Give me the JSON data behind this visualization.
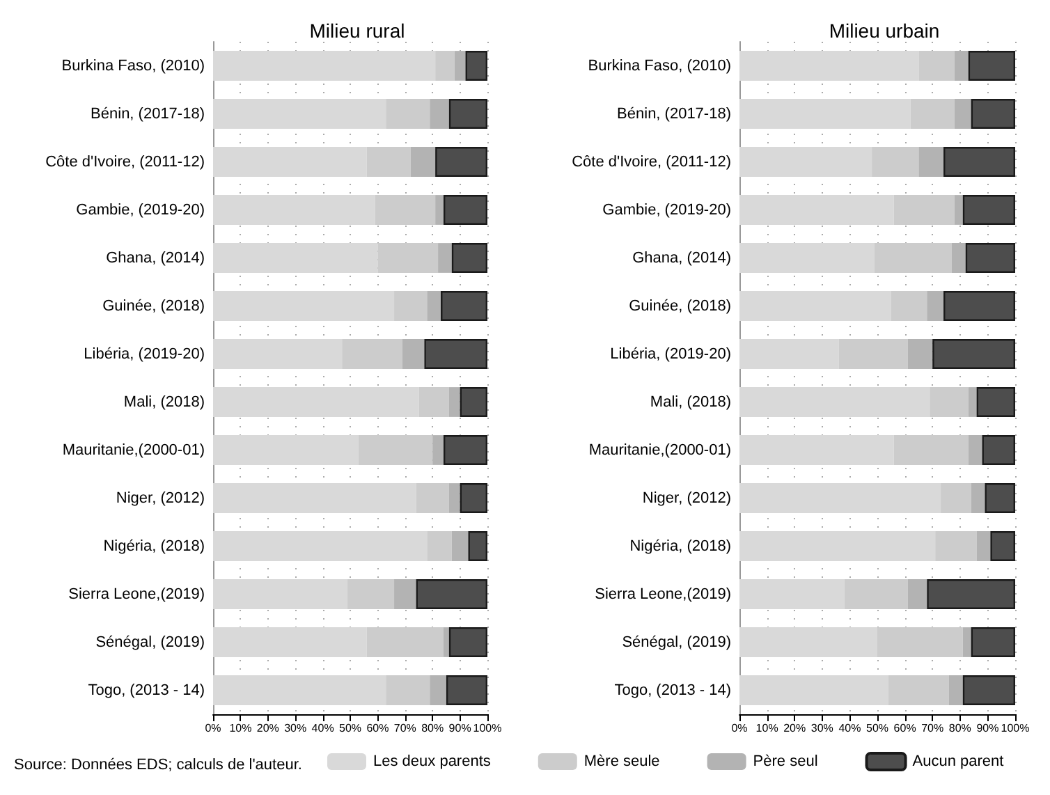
{
  "chart_data": [
    {
      "type": "bar",
      "orientation": "horizontal",
      "stacked": true,
      "title": "Milieu rural",
      "categories": [
        "Burkina Faso, (2010)",
        "Bénin, (2017-18)",
        "Côte d'Ivoire, (2011-12)",
        "Gambie, (2019-20)",
        "Ghana, (2014)",
        "Guinée, (2018)",
        "Libéria, (2019-20)",
        "Mali, (2018)",
        "Mauritanie,(2000-01)",
        "Niger, (2012)",
        "Nigéria, (2018)",
        "Sierra Leone,(2019)",
        "Sénégal, (2019)",
        "Togo, (2013 - 14)"
      ],
      "series": [
        {
          "name": "Les deux parents",
          "color": "#d9d9d9",
          "values": [
            81,
            63,
            56,
            59,
            60,
            66,
            47,
            75,
            53,
            74,
            78,
            49,
            56,
            63
          ]
        },
        {
          "name": "Mère seule",
          "color": "#cccccc",
          "values": [
            7,
            16,
            16,
            22,
            22,
            12,
            22,
            11,
            27,
            12,
            9,
            17,
            28,
            16
          ]
        },
        {
          "name": "Père seul",
          "color": "#b3b3b3",
          "values": [
            4,
            7,
            9,
            3,
            5,
            5,
            8,
            4,
            4,
            4,
            6,
            8,
            2,
            6
          ]
        },
        {
          "name": "Aucun parent",
          "color": "#4d4d4d",
          "values": [
            8,
            14,
            19,
            16,
            13,
            17,
            23,
            10,
            16,
            10,
            7,
            26,
            14,
            15
          ]
        }
      ],
      "xlim": [
        0,
        100
      ],
      "xticks": [
        {
          "value": 0,
          "label": "0%"
        },
        {
          "value": 10,
          "label": "10%"
        },
        {
          "value": 20,
          "label": "20%"
        },
        {
          "value": 30,
          "label": "30%"
        },
        {
          "value": 40,
          "label": "40%"
        },
        {
          "value": 50,
          "label": "50%"
        },
        {
          "value": 60,
          "label": "60%"
        },
        {
          "value": 70,
          "label": "70%"
        },
        {
          "value": 80,
          "label": "80%"
        },
        {
          "value": 90,
          "label": "90%"
        },
        {
          "value": 100,
          "label": "100%"
        }
      ],
      "grid": "x",
      "legend": "bottom",
      "annotations": [
        "Source: Données EDS; calculs de l'auteur."
      ]
    },
    {
      "type": "bar",
      "orientation": "horizontal",
      "stacked": true,
      "title": "Milieu urbain",
      "categories": [
        "Burkina Faso, (2010)",
        "Bénin, (2017-18)",
        "Côte d'Ivoire, (2011-12)",
        "Gambie, (2019-20)",
        "Ghana, (2014)",
        "Guinée, (2018)",
        "Libéria, (2019-20)",
        "Mali, (2018)",
        "Mauritanie,(2000-01)",
        "Niger, (2012)",
        "Nigéria, (2018)",
        "Sierra Leone,(2019)",
        "Sénégal, (2019)",
        "Togo, (2013 - 14)"
      ],
      "series": [
        {
          "color": "#d9d9d9",
          "values": [
            65,
            62,
            48,
            56,
            49,
            55,
            36,
            69,
            56,
            73,
            71,
            38,
            50,
            54
          ]
        },
        {
          "color": "#cccccc",
          "values": [
            13,
            16,
            17,
            22,
            28,
            13,
            25,
            14,
            27,
            11,
            15,
            23,
            31,
            22
          ]
        },
        {
          "color": "#b3b3b3",
          "values": [
            5,
            6,
            9,
            3,
            5,
            6,
            9,
            3,
            5,
            5,
            5,
            7,
            3,
            5
          ]
        },
        {
          "color": "#4d4d4d",
          "values": [
            17,
            16,
            26,
            19,
            18,
            26,
            30,
            14,
            12,
            11,
            9,
            32,
            16,
            19
          ]
        }
      ],
      "xlim": [
        0,
        100
      ],
      "xticks": [
        {
          "value": 0,
          "label": "0%"
        },
        {
          "value": 10,
          "label": "10%"
        },
        {
          "value": 20,
          "label": "20%"
        },
        {
          "value": 30,
          "label": "30%"
        },
        {
          "value": 40,
          "label": "40%"
        },
        {
          "value": 50,
          "label": "50%"
        },
        {
          "value": 60,
          "label": "60%"
        },
        {
          "value": 70,
          "label": "70%"
        },
        {
          "value": 80,
          "label": "80%"
        },
        {
          "value": 90,
          "label": "90%"
        },
        {
          "value": 100,
          "label": "100%"
        }
      ],
      "grid": "x"
    }
  ]
}
